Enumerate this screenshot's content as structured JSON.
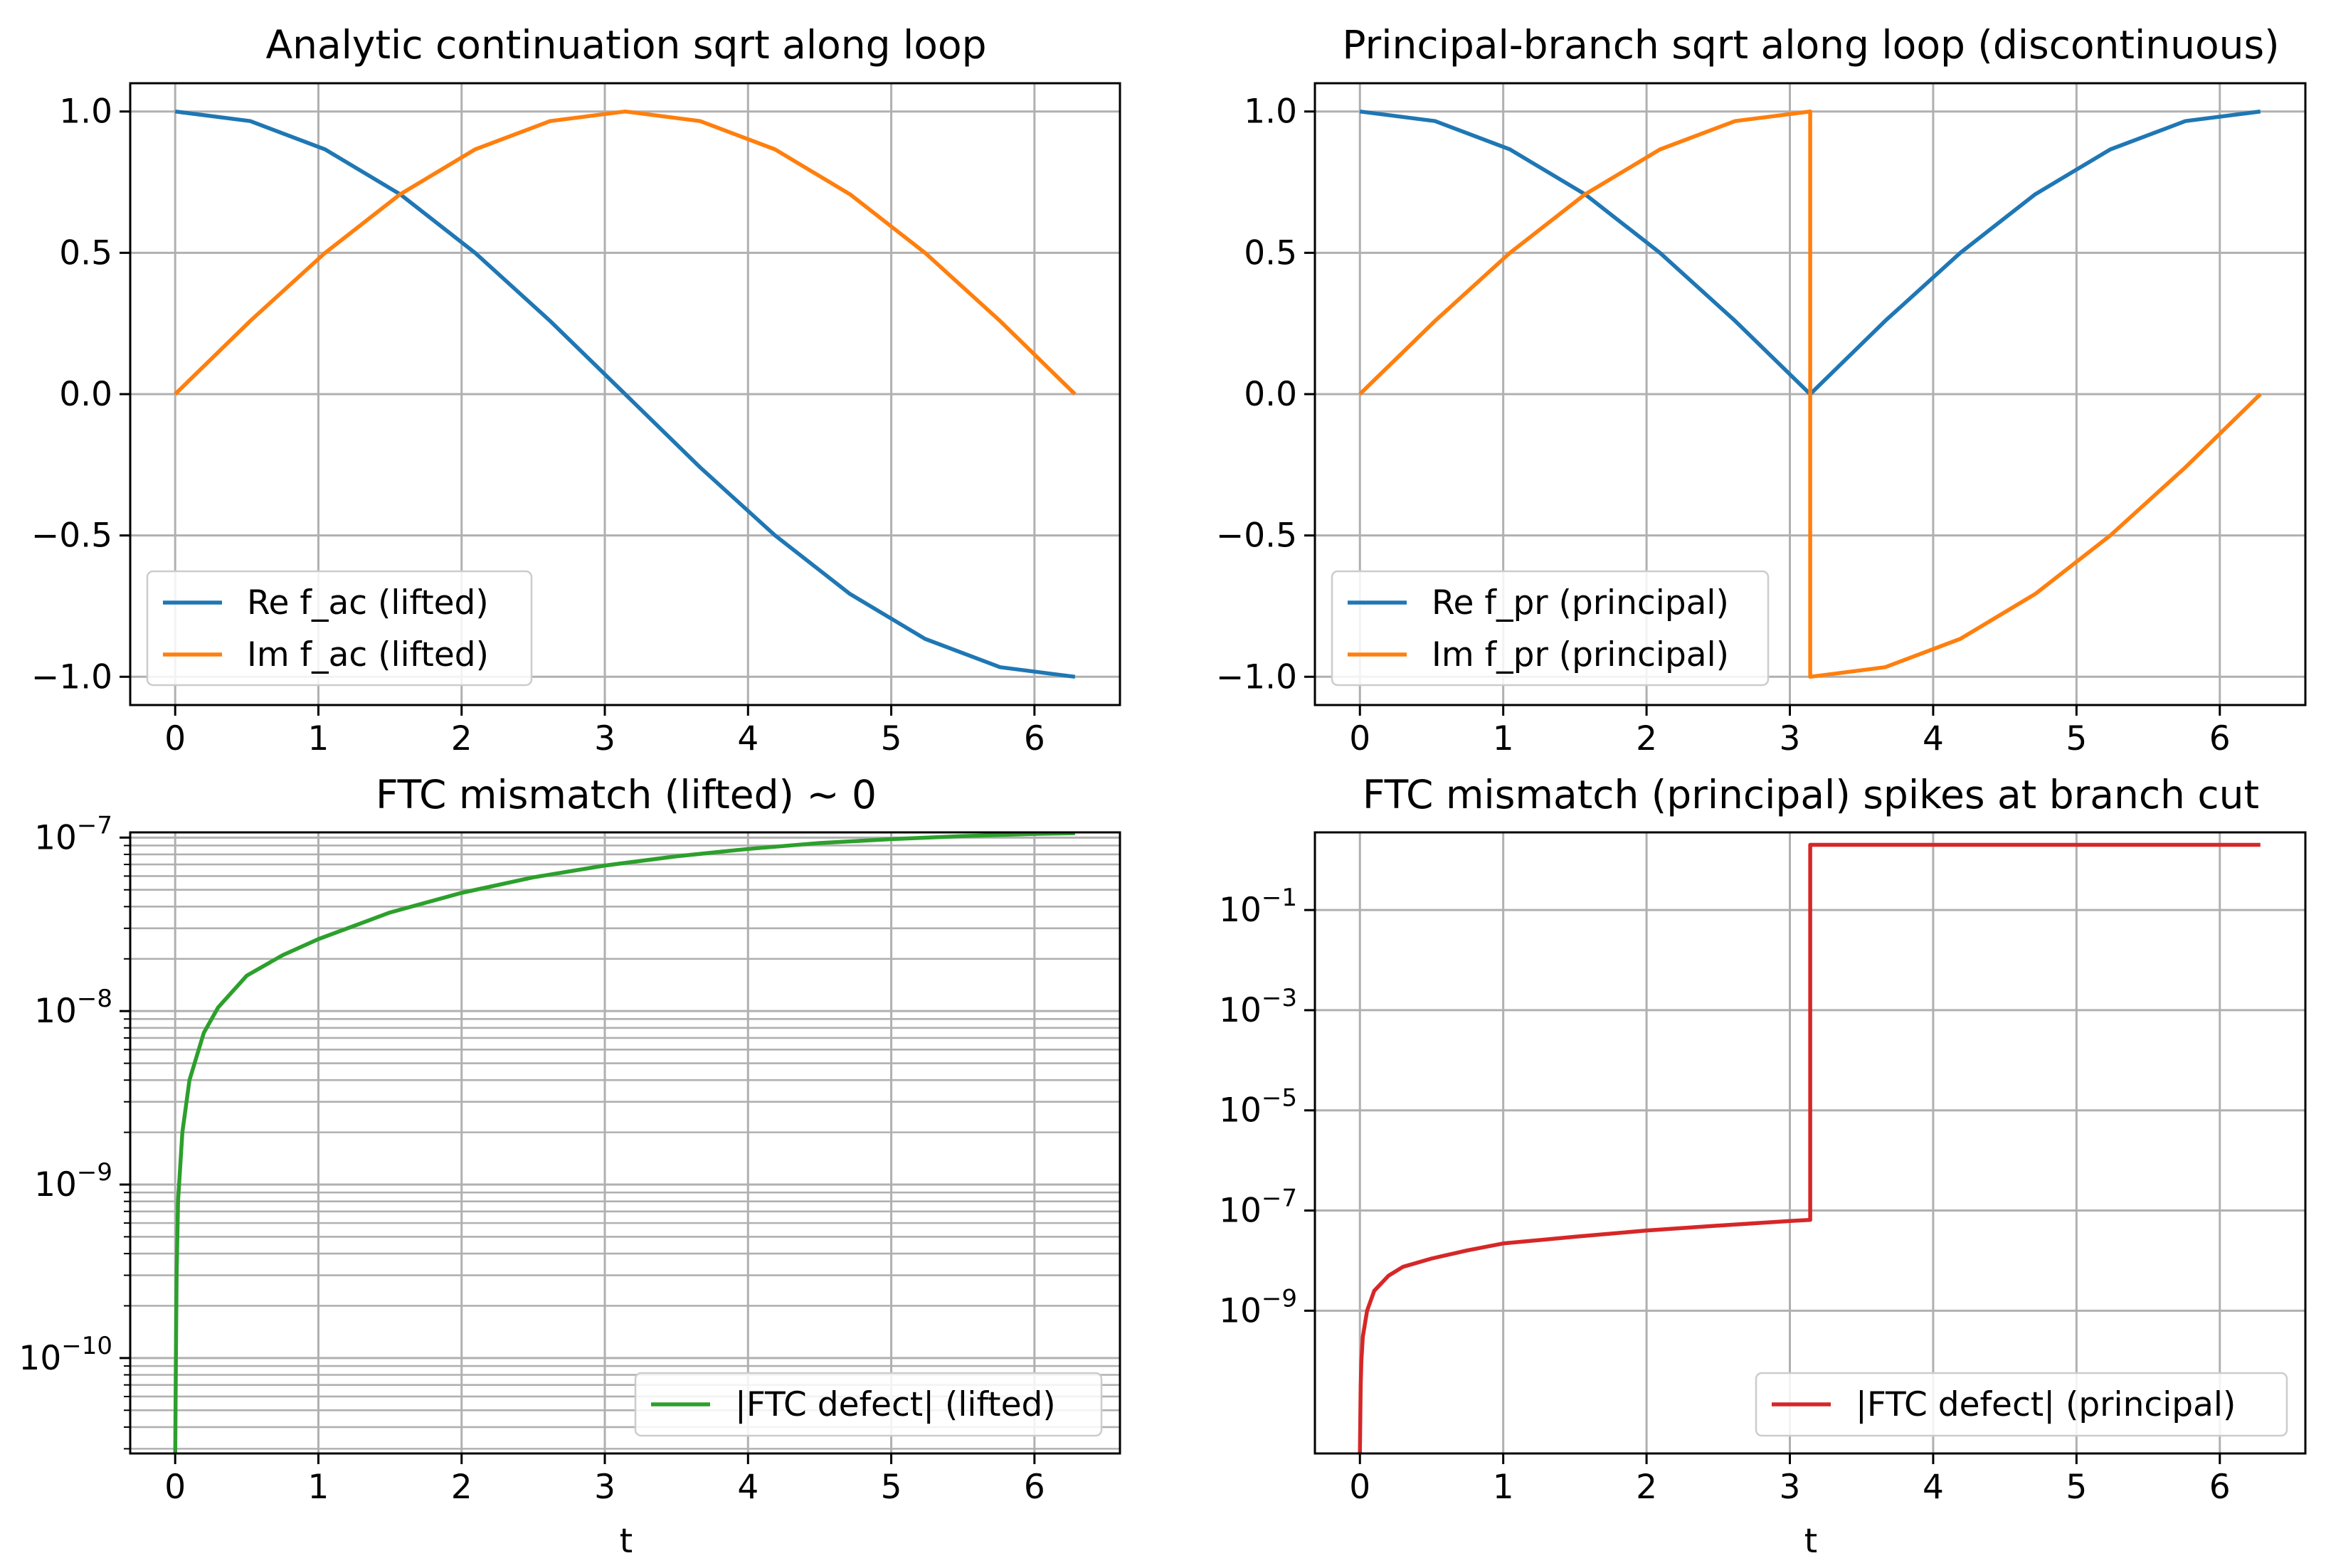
{
  "chart_data": [
    {
      "type": "line",
      "title": "Analytic continuation sqrt along loop",
      "xlabel": "",
      "ylabel": "",
      "xlim": [
        -0.314,
        6.597
      ],
      "ylim": [
        -1.1,
        1.1
      ],
      "yscale": "linear",
      "grid": true,
      "legend_loc": "lower-left",
      "xticks": [
        {
          "v": 0,
          "label": "0"
        },
        {
          "v": 1,
          "label": "1"
        },
        {
          "v": 2,
          "label": "2"
        },
        {
          "v": 3,
          "label": "3"
        },
        {
          "v": 4,
          "label": "4"
        },
        {
          "v": 5,
          "label": "5"
        },
        {
          "v": 6,
          "label": "6"
        }
      ],
      "yticks": [
        {
          "v": -1.0,
          "label": "−1.0"
        },
        {
          "v": -0.5,
          "label": "−0.5"
        },
        {
          "v": 0.0,
          "label": "0.0"
        },
        {
          "v": 0.5,
          "label": "0.5"
        },
        {
          "v": 1.0,
          "label": "1.0"
        }
      ],
      "series": [
        {
          "name": "Re f_ac (lifted)",
          "color": "#1f77b4",
          "x": [
            0,
            0.524,
            1.047,
            1.571,
            2.094,
            2.618,
            3.142,
            3.665,
            4.189,
            4.712,
            5.236,
            5.76,
            6.283
          ],
          "values": [
            1.0,
            0.966,
            0.866,
            0.707,
            0.5,
            0.259,
            0.0,
            -0.259,
            -0.5,
            -0.707,
            -0.866,
            -0.966,
            -1.0
          ]
        },
        {
          "name": "Im f_ac (lifted)",
          "color": "#ff7f0e",
          "x": [
            0,
            0.524,
            1.047,
            1.571,
            2.094,
            2.618,
            3.142,
            3.665,
            4.189,
            4.712,
            5.236,
            5.76,
            6.283
          ],
          "values": [
            0.0,
            0.259,
            0.5,
            0.707,
            0.866,
            0.966,
            1.0,
            0.966,
            0.866,
            0.707,
            0.5,
            0.259,
            0.0
          ]
        }
      ]
    },
    {
      "type": "line",
      "title": "Principal-branch sqrt along loop (discontinuous)",
      "xlabel": "",
      "ylabel": "",
      "xlim": [
        -0.314,
        6.597
      ],
      "ylim": [
        -1.1,
        1.1
      ],
      "yscale": "linear",
      "grid": true,
      "legend_loc": "lower-left",
      "xticks": [
        {
          "v": 0,
          "label": "0"
        },
        {
          "v": 1,
          "label": "1"
        },
        {
          "v": 2,
          "label": "2"
        },
        {
          "v": 3,
          "label": "3"
        },
        {
          "v": 4,
          "label": "4"
        },
        {
          "v": 5,
          "label": "5"
        },
        {
          "v": 6,
          "label": "6"
        }
      ],
      "yticks": [
        {
          "v": -1.0,
          "label": "−1.0"
        },
        {
          "v": -0.5,
          "label": "−0.5"
        },
        {
          "v": 0.0,
          "label": "0.0"
        },
        {
          "v": 0.5,
          "label": "0.5"
        },
        {
          "v": 1.0,
          "label": "1.0"
        }
      ],
      "series": [
        {
          "name": "Re f_pr (principal)",
          "color": "#1f77b4",
          "x": [
            0,
            0.524,
            1.047,
            1.571,
            2.094,
            2.618,
            3.142,
            3.665,
            4.189,
            4.712,
            5.236,
            5.76,
            6.283
          ],
          "values": [
            1.0,
            0.966,
            0.866,
            0.707,
            0.5,
            0.259,
            0.0,
            0.259,
            0.5,
            0.707,
            0.866,
            0.966,
            1.0
          ]
        },
        {
          "name": "Im f_pr (principal)",
          "color": "#ff7f0e",
          "x": [
            0,
            0.524,
            1.047,
            1.571,
            2.094,
            2.618,
            3.142,
            3.142,
            3.665,
            4.189,
            4.712,
            5.236,
            5.76,
            6.283
          ],
          "values": [
            0.0,
            0.259,
            0.5,
            0.707,
            0.866,
            0.966,
            1.0,
            -1.0,
            -0.966,
            -0.866,
            -0.707,
            -0.5,
            -0.259,
            0.0
          ]
        }
      ]
    },
    {
      "type": "line",
      "title": "FTC mismatch (lifted) ~ 0",
      "xlabel": "t",
      "ylabel": "",
      "xlim": [
        -0.314,
        6.597
      ],
      "ylim_log10": [
        -10.55,
        -6.97
      ],
      "yscale": "log",
      "grid": true,
      "minor_grid": true,
      "legend_loc": "lower-right",
      "xticks": [
        {
          "v": 0,
          "label": "0"
        },
        {
          "v": 1,
          "label": "1"
        },
        {
          "v": 2,
          "label": "2"
        },
        {
          "v": 3,
          "label": "3"
        },
        {
          "v": 4,
          "label": "4"
        },
        {
          "v": 5,
          "label": "5"
        },
        {
          "v": 6,
          "label": "6"
        }
      ],
      "yticks": [
        {
          "exp": -10,
          "base": "10",
          "sup": "−10"
        },
        {
          "exp": -9,
          "base": "10",
          "sup": "−9"
        },
        {
          "exp": -8,
          "base": "10",
          "sup": "−8"
        },
        {
          "exp": -7,
          "base": "10",
          "sup": "−7"
        }
      ],
      "series": [
        {
          "name": "|FTC defect| (lifted)",
          "color": "#2ca02c",
          "x": [
            0.0,
            0.005,
            0.01,
            0.02,
            0.05,
            0.1,
            0.2,
            0.3,
            0.5,
            0.75,
            1.0,
            1.5,
            2.0,
            2.5,
            3.0,
            3.5,
            4.0,
            4.5,
            5.0,
            5.5,
            6.0,
            6.283
          ],
          "values": [
            2.5e-11,
            1e-10,
            3e-10,
            8e-10,
            2e-09,
            4e-09,
            7.5e-09,
            1.05e-08,
            1.6e-08,
            2.1e-08,
            2.6e-08,
            3.7e-08,
            4.8e-08,
            5.9e-08,
            6.9e-08,
            7.8e-08,
            8.6e-08,
            9.3e-08,
            9.8e-08,
            1.02e-07,
            1.05e-07,
            1.06e-07
          ]
        }
      ]
    },
    {
      "type": "line",
      "title": "FTC mismatch (principal) spikes at branch cut",
      "xlabel": "t",
      "ylabel": "",
      "xlim": [
        -0.314,
        6.597
      ],
      "ylim_log10": [
        -11.85,
        0.55
      ],
      "yscale": "log",
      "grid": true,
      "minor_grid": false,
      "legend_loc": "lower-right",
      "xticks": [
        {
          "v": 0,
          "label": "0"
        },
        {
          "v": 1,
          "label": "1"
        },
        {
          "v": 2,
          "label": "2"
        },
        {
          "v": 3,
          "label": "3"
        },
        {
          "v": 4,
          "label": "4"
        },
        {
          "v": 5,
          "label": "5"
        },
        {
          "v": 6,
          "label": "6"
        }
      ],
      "yticks": [
        {
          "exp": -9,
          "base": "10",
          "sup": "−9"
        },
        {
          "exp": -7,
          "base": "10",
          "sup": "−7"
        },
        {
          "exp": -5,
          "base": "10",
          "sup": "−5"
        },
        {
          "exp": -3,
          "base": "10",
          "sup": "−3"
        },
        {
          "exp": -1,
          "base": "10",
          "sup": "−1"
        }
      ],
      "series": [
        {
          "name": "|FTC defect| (principal)",
          "color": "#d62728",
          "x": [
            0.0,
            0.005,
            0.01,
            0.02,
            0.05,
            0.1,
            0.2,
            0.3,
            0.5,
            0.75,
            1.0,
            1.5,
            2.0,
            2.5,
            3.0,
            3.142,
            3.142,
            4.0,
            5.0,
            6.283
          ],
          "values": [
            1.4e-12,
            3e-11,
            1e-10,
            3e-10,
            1e-09,
            2.5e-09,
            5e-09,
            7.5e-09,
            1.1e-08,
            1.6e-08,
            2.2e-08,
            3e-08,
            4e-08,
            5e-08,
            6.2e-08,
            6.5e-08,
            2.0,
            2.0,
            2.0,
            2.0
          ]
        }
      ]
    }
  ]
}
